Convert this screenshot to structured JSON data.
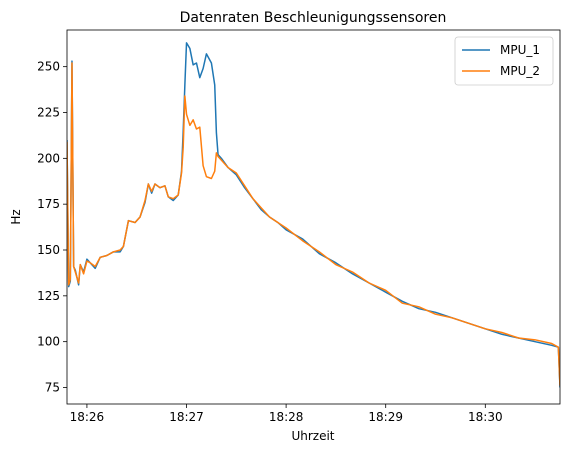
{
  "chart_data": {
    "type": "line",
    "title": "Datenraten Beschleunigungssensoren",
    "xlabel": "Uhrzeit",
    "ylabel": "Hz",
    "xlim": [
      "18:25:48",
      "18:30:45"
    ],
    "ylim": [
      66,
      270
    ],
    "x_ticks": [
      "18:26",
      "18:27",
      "18:28",
      "18:29",
      "18:30"
    ],
    "y_ticks": [
      75,
      100,
      125,
      150,
      175,
      200,
      225,
      250
    ],
    "grid": false,
    "legend": "top-right",
    "colors": {
      "MPU_1": "#1f77b4",
      "MPU_2": "#ff7f0e"
    },
    "series": [
      {
        "name": "MPU_1",
        "points": [
          [
            "18:25:48",
            210
          ],
          [
            "18:25:49",
            130
          ],
          [
            "18:25:50",
            133
          ],
          [
            "18:25:51",
            253
          ],
          [
            "18:25:52",
            141
          ],
          [
            "18:25:53",
            139
          ],
          [
            "18:25:55",
            131
          ],
          [
            "18:25:56",
            142
          ],
          [
            "18:25:58",
            138
          ],
          [
            "18:26:00",
            145
          ],
          [
            "18:26:02",
            143
          ],
          [
            "18:26:05",
            140
          ],
          [
            "18:26:08",
            146
          ],
          [
            "18:26:12",
            147
          ],
          [
            "18:26:16",
            149
          ],
          [
            "18:26:20",
            149
          ],
          [
            "18:26:22",
            152
          ],
          [
            "18:26:25",
            166
          ],
          [
            "18:26:29",
            165
          ],
          [
            "18:26:32",
            168
          ],
          [
            "18:26:35",
            176
          ],
          [
            "18:26:37",
            186
          ],
          [
            "18:26:39",
            181
          ],
          [
            "18:26:41",
            186
          ],
          [
            "18:26:44",
            184
          ],
          [
            "18:26:47",
            185
          ],
          [
            "18:26:49",
            179
          ],
          [
            "18:26:52",
            177
          ],
          [
            "18:26:55",
            180
          ],
          [
            "18:26:57",
            193
          ],
          [
            "18:26:58",
            215
          ],
          [
            "18:26:59",
            240
          ],
          [
            "18:27:00",
            263
          ],
          [
            "18:27:02",
            260
          ],
          [
            "18:27:04",
            251
          ],
          [
            "18:27:06",
            252
          ],
          [
            "18:27:08",
            244
          ],
          [
            "18:27:10",
            249
          ],
          [
            "18:27:12",
            257
          ],
          [
            "18:27:15",
            252
          ],
          [
            "18:27:17",
            240
          ],
          [
            "18:27:18",
            214
          ],
          [
            "18:27:19",
            202
          ],
          [
            "18:27:21",
            200
          ],
          [
            "18:27:25",
            195
          ],
          [
            "18:27:30",
            191
          ],
          [
            "18:27:35",
            184
          ],
          [
            "18:27:40",
            178
          ],
          [
            "18:27:45",
            172
          ],
          [
            "18:27:50",
            168
          ],
          [
            "18:27:55",
            165
          ],
          [
            "18:28:00",
            161
          ],
          [
            "18:28:10",
            156
          ],
          [
            "18:28:20",
            148
          ],
          [
            "18:28:30",
            143
          ],
          [
            "18:28:40",
            137
          ],
          [
            "18:28:50",
            132
          ],
          [
            "18:29:00",
            127
          ],
          [
            "18:29:10",
            122
          ],
          [
            "18:29:20",
            118
          ],
          [
            "18:29:30",
            116
          ],
          [
            "18:29:40",
            113
          ],
          [
            "18:29:50",
            110
          ],
          [
            "18:30:00",
            107
          ],
          [
            "18:30:10",
            104
          ],
          [
            "18:30:20",
            102
          ],
          [
            "18:30:30",
            100
          ],
          [
            "18:30:40",
            98
          ],
          [
            "18:30:44",
            97
          ],
          [
            "18:30:45",
            75
          ]
        ]
      },
      {
        "name": "MPU_2",
        "points": [
          [
            "18:25:48",
            209
          ],
          [
            "18:25:49",
            131
          ],
          [
            "18:25:50",
            134
          ],
          [
            "18:25:51",
            252
          ],
          [
            "18:25:52",
            141
          ],
          [
            "18:25:53",
            138
          ],
          [
            "18:25:55",
            132
          ],
          [
            "18:25:56",
            142
          ],
          [
            "18:25:58",
            137
          ],
          [
            "18:26:00",
            144
          ],
          [
            "18:26:02",
            143
          ],
          [
            "18:26:05",
            141
          ],
          [
            "18:26:08",
            146
          ],
          [
            "18:26:12",
            147
          ],
          [
            "18:26:16",
            149
          ],
          [
            "18:26:20",
            150
          ],
          [
            "18:26:22",
            152
          ],
          [
            "18:26:25",
            166
          ],
          [
            "18:26:29",
            165
          ],
          [
            "18:26:32",
            168
          ],
          [
            "18:26:35",
            177
          ],
          [
            "18:26:37",
            186
          ],
          [
            "18:26:39",
            182
          ],
          [
            "18:26:41",
            186
          ],
          [
            "18:26:44",
            184
          ],
          [
            "18:26:47",
            185
          ],
          [
            "18:26:49",
            179
          ],
          [
            "18:26:52",
            178
          ],
          [
            "18:26:55",
            180
          ],
          [
            "18:26:57",
            192
          ],
          [
            "18:26:58",
            206
          ],
          [
            "18:26:59",
            234
          ],
          [
            "18:27:00",
            224
          ],
          [
            "18:27:02",
            218
          ],
          [
            "18:27:04",
            221
          ],
          [
            "18:27:06",
            216
          ],
          [
            "18:27:08",
            217
          ],
          [
            "18:27:10",
            196
          ],
          [
            "18:27:12",
            190
          ],
          [
            "18:27:15",
            189
          ],
          [
            "18:27:17",
            193
          ],
          [
            "18:27:18",
            203
          ],
          [
            "18:27:19",
            201
          ],
          [
            "18:27:21",
            199
          ],
          [
            "18:27:25",
            195
          ],
          [
            "18:27:30",
            192
          ],
          [
            "18:27:35",
            185
          ],
          [
            "18:27:40",
            178
          ],
          [
            "18:27:45",
            173
          ],
          [
            "18:27:50",
            168
          ],
          [
            "18:27:55",
            165
          ],
          [
            "18:28:00",
            162
          ],
          [
            "18:28:10",
            155
          ],
          [
            "18:28:20",
            149
          ],
          [
            "18:28:30",
            142
          ],
          [
            "18:28:40",
            138
          ],
          [
            "18:28:50",
            132
          ],
          [
            "18:29:00",
            128
          ],
          [
            "18:29:10",
            121
          ],
          [
            "18:29:20",
            119
          ],
          [
            "18:29:30",
            115
          ],
          [
            "18:29:40",
            113
          ],
          [
            "18:29:50",
            110
          ],
          [
            "18:30:00",
            107
          ],
          [
            "18:30:10",
            105
          ],
          [
            "18:30:20",
            102
          ],
          [
            "18:30:30",
            101
          ],
          [
            "18:30:40",
            99
          ],
          [
            "18:30:44",
            97
          ],
          [
            "18:30:45",
            76
          ]
        ]
      }
    ]
  }
}
